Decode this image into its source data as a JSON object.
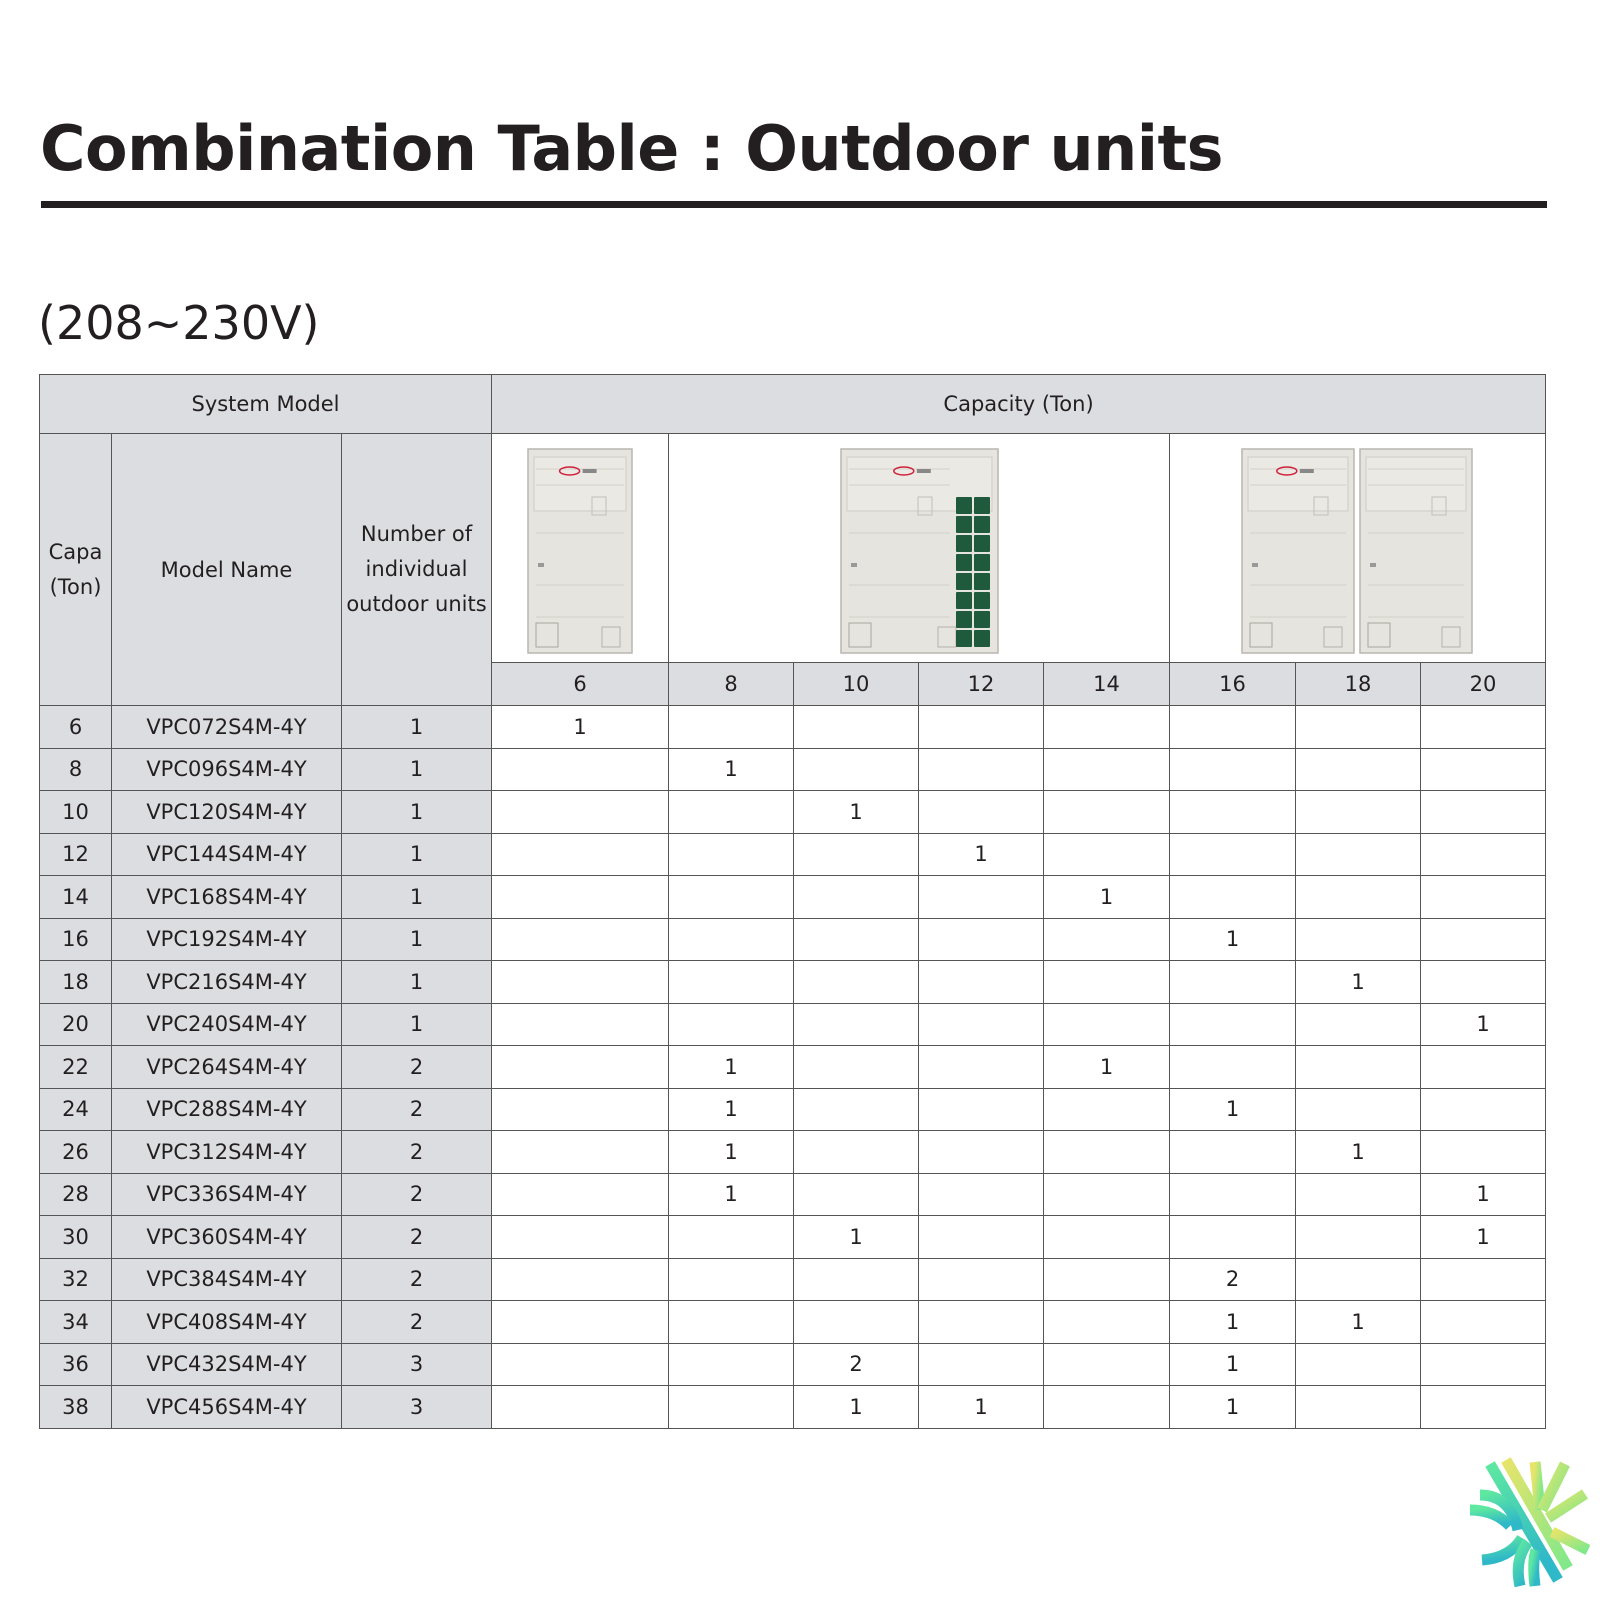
{
  "title": "Combination Table : Outdoor units",
  "subtitle": "(208~230V)",
  "table": {
    "system_model_label": "System Model",
    "capacity_label": "Capacity (Ton)",
    "col_capa": "Capa (Ton)",
    "col_model": "Model Name",
    "col_units": "Number of individual outdoor units",
    "capacities": [
      "6",
      "8",
      "10",
      "12",
      "14",
      "16",
      "18",
      "20"
    ],
    "unit_images": [
      "single-module outdoor unit (6)",
      "single-module outdoor unit with grille (8-14)",
      "dual-module outdoor unit (16-20)"
    ],
    "rows": [
      {
        "capa": "6",
        "model": "VPC072S4M-4Y",
        "units": "1",
        "cells": [
          "1",
          "",
          "",
          "",
          "",
          "",
          "",
          ""
        ]
      },
      {
        "capa": "8",
        "model": "VPC096S4M-4Y",
        "units": "1",
        "cells": [
          "",
          "1",
          "",
          "",
          "",
          "",
          "",
          ""
        ]
      },
      {
        "capa": "10",
        "model": "VPC120S4M-4Y",
        "units": "1",
        "cells": [
          "",
          "",
          "1",
          "",
          "",
          "",
          "",
          ""
        ]
      },
      {
        "capa": "12",
        "model": "VPC144S4M-4Y",
        "units": "1",
        "cells": [
          "",
          "",
          "",
          "1",
          "",
          "",
          "",
          ""
        ]
      },
      {
        "capa": "14",
        "model": "VPC168S4M-4Y",
        "units": "1",
        "cells": [
          "",
          "",
          "",
          "",
          "1",
          "",
          "",
          ""
        ]
      },
      {
        "capa": "16",
        "model": "VPC192S4M-4Y",
        "units": "1",
        "cells": [
          "",
          "",
          "",
          "",
          "",
          "1",
          "",
          ""
        ]
      },
      {
        "capa": "18",
        "model": "VPC216S4M-4Y",
        "units": "1",
        "cells": [
          "",
          "",
          "",
          "",
          "",
          "",
          "1",
          ""
        ]
      },
      {
        "capa": "20",
        "model": "VPC240S4M-4Y",
        "units": "1",
        "cells": [
          "",
          "",
          "",
          "",
          "",
          "",
          "",
          "1"
        ]
      },
      {
        "capa": "22",
        "model": "VPC264S4M-4Y",
        "units": "2",
        "cells": [
          "",
          "1",
          "",
          "",
          "1",
          "",
          "",
          ""
        ]
      },
      {
        "capa": "24",
        "model": "VPC288S4M-4Y",
        "units": "2",
        "cells": [
          "",
          "1",
          "",
          "",
          "",
          "1",
          "",
          ""
        ]
      },
      {
        "capa": "26",
        "model": "VPC312S4M-4Y",
        "units": "2",
        "cells": [
          "",
          "1",
          "",
          "",
          "",
          "",
          "1",
          ""
        ]
      },
      {
        "capa": "28",
        "model": "VPC336S4M-4Y",
        "units": "2",
        "cells": [
          "",
          "1",
          "",
          "",
          "",
          "",
          "",
          "1"
        ]
      },
      {
        "capa": "30",
        "model": "VPC360S4M-4Y",
        "units": "2",
        "cells": [
          "",
          "",
          "1",
          "",
          "",
          "",
          "",
          "1"
        ]
      },
      {
        "capa": "32",
        "model": "VPC384S4M-4Y",
        "units": "2",
        "cells": [
          "",
          "",
          "",
          "",
          "",
          "2",
          "",
          ""
        ]
      },
      {
        "capa": "34",
        "model": "VPC408S4M-4Y",
        "units": "2",
        "cells": [
          "",
          "",
          "",
          "",
          "",
          "1",
          "1",
          ""
        ]
      },
      {
        "capa": "36",
        "model": "VPC432S4M-4Y",
        "units": "3",
        "cells": [
          "",
          "",
          "2",
          "",
          "",
          "1",
          "",
          ""
        ]
      },
      {
        "capa": "38",
        "model": "VPC456S4M-4Y",
        "units": "3",
        "cells": [
          "",
          "",
          "1",
          "1",
          "",
          "1",
          "",
          ""
        ]
      }
    ]
  },
  "colors": {
    "header_bg": "#dcdde0",
    "text": "#231f20",
    "grille": "#1f5a3c",
    "brand": "#d0213c"
  },
  "logo_icon": "snowflake-sun-logo"
}
